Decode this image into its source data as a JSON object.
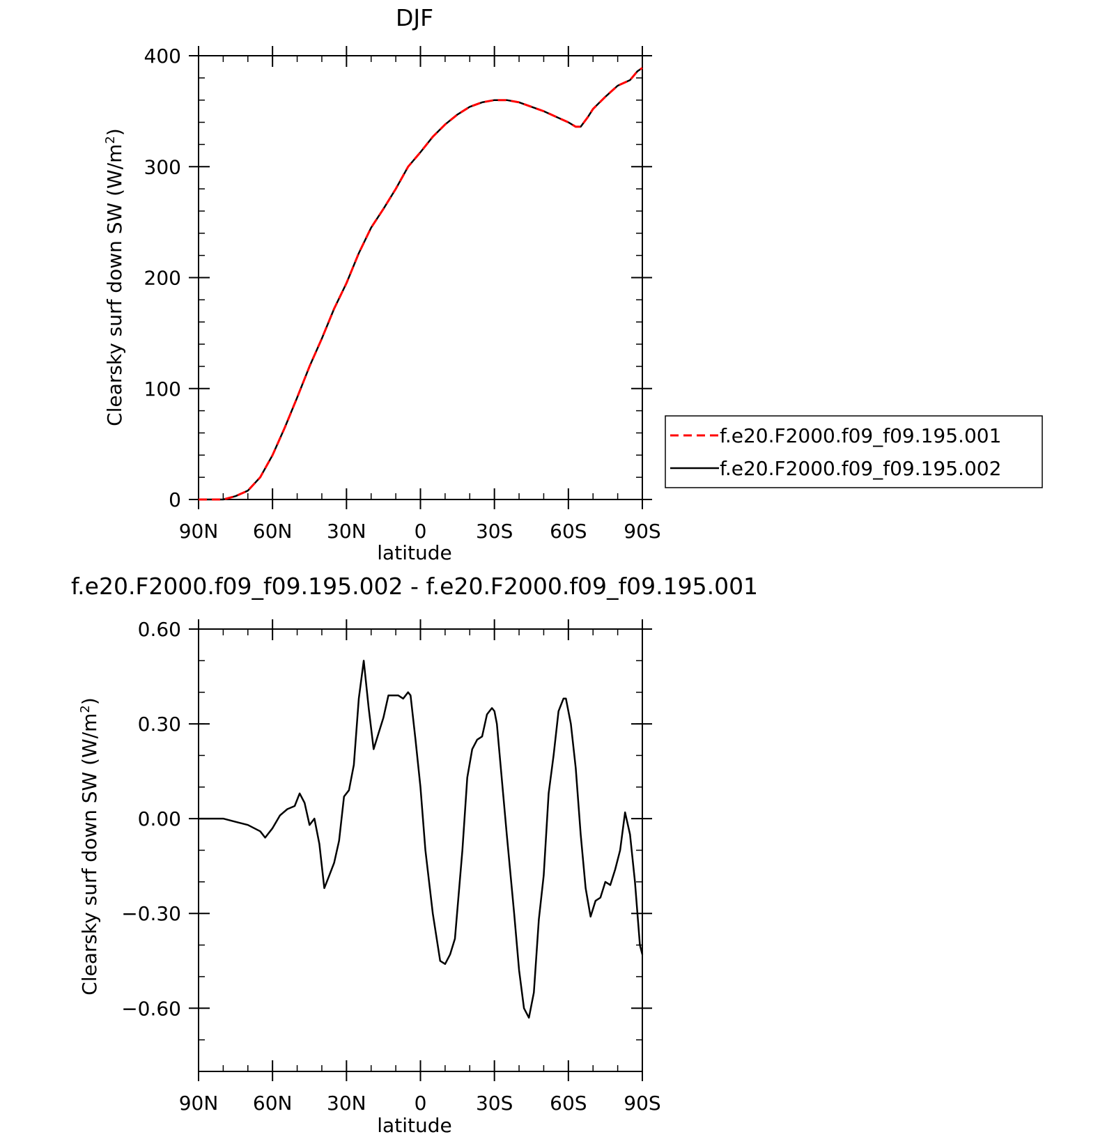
{
  "chart_data": [
    {
      "type": "line",
      "title": "DJF",
      "xlabel": "latitude",
      "ylabel": "Clearsky surf down SW (W/m",
      "ylabel_sup": "2",
      "ylabel_end": ")",
      "xlim": [
        90,
        -90
      ],
      "ylim": [
        0,
        400
      ],
      "x_ticks": [
        {
          "value": 90,
          "label": "90N"
        },
        {
          "value": 60,
          "label": "60N"
        },
        {
          "value": 30,
          "label": "30N"
        },
        {
          "value": 0,
          "label": "0"
        },
        {
          "value": -30,
          "label": "30S"
        },
        {
          "value": -60,
          "label": "60S"
        },
        {
          "value": -90,
          "label": "90S"
        }
      ],
      "y_ticks": [
        {
          "value": 0,
          "label": "0"
        },
        {
          "value": 100,
          "label": "100"
        },
        {
          "value": 200,
          "label": "200"
        },
        {
          "value": 300,
          "label": "300"
        },
        {
          "value": 400,
          "label": "400"
        }
      ],
      "legend_position": "right",
      "series": [
        {
          "name": "f.e20.F2000.f09_f09.195.001",
          "color": "#ff0000",
          "dash": "dashed",
          "points": [
            [
              90,
              0
            ],
            [
              85,
              0
            ],
            [
              80,
              0
            ],
            [
              75,
              3
            ],
            [
              70,
              8
            ],
            [
              65,
              20
            ],
            [
              60,
              40
            ],
            [
              55,
              65
            ],
            [
              50,
              92
            ],
            [
              45,
              120
            ],
            [
              40,
              145
            ],
            [
              35,
              172
            ],
            [
              30,
              195
            ],
            [
              25,
              222
            ],
            [
              20,
              245
            ],
            [
              15,
              262
            ],
            [
              10,
              280
            ],
            [
              5,
              300
            ],
            [
              0,
              313
            ],
            [
              -5,
              327
            ],
            [
              -10,
              338
            ],
            [
              -15,
              347
            ],
            [
              -20,
              354
            ],
            [
              -25,
              358
            ],
            [
              -30,
              360
            ],
            [
              -35,
              360
            ],
            [
              -40,
              358
            ],
            [
              -45,
              354
            ],
            [
              -50,
              350
            ],
            [
              -55,
              345
            ],
            [
              -60,
              340
            ],
            [
              -63,
              336
            ],
            [
              -65,
              336
            ],
            [
              -68,
              345
            ],
            [
              -70,
              352
            ],
            [
              -75,
              363
            ],
            [
              -80,
              373
            ],
            [
              -85,
              378
            ],
            [
              -88,
              386
            ],
            [
              -90,
              389
            ]
          ]
        },
        {
          "name": "f.e20.F2000.f09_f09.195.002",
          "color": "#000000",
          "dash": "solid",
          "points": [
            [
              90,
              0
            ],
            [
              85,
              0
            ],
            [
              80,
              0
            ],
            [
              75,
              3
            ],
            [
              70,
              8
            ],
            [
              65,
              20
            ],
            [
              60,
              40
            ],
            [
              55,
              65
            ],
            [
              50,
              92
            ],
            [
              45,
              120
            ],
            [
              40,
              145
            ],
            [
              35,
              172
            ],
            [
              30,
              195
            ],
            [
              25,
              222
            ],
            [
              20,
              245
            ],
            [
              15,
              262
            ],
            [
              10,
              280
            ],
            [
              5,
              300
            ],
            [
              0,
              313
            ],
            [
              -5,
              327
            ],
            [
              -10,
              338
            ],
            [
              -15,
              347
            ],
            [
              -20,
              354
            ],
            [
              -25,
              358
            ],
            [
              -30,
              360
            ],
            [
              -35,
              360
            ],
            [
              -40,
              358
            ],
            [
              -45,
              354
            ],
            [
              -50,
              350
            ],
            [
              -55,
              345
            ],
            [
              -60,
              340
            ],
            [
              -63,
              336
            ],
            [
              -65,
              336
            ],
            [
              -68,
              345
            ],
            [
              -70,
              352
            ],
            [
              -75,
              363
            ],
            [
              -80,
              373
            ],
            [
              -85,
              378
            ],
            [
              -88,
              386
            ],
            [
              -90,
              389
            ]
          ]
        }
      ]
    },
    {
      "type": "line",
      "title": "f.e20.F2000.f09_f09.195.002 - f.e20.F2000.f09_f09.195.001",
      "xlabel": "latitude",
      "ylabel": "Clearsky surf down SW (W/m",
      "ylabel_sup": "2",
      "ylabel_end": ")",
      "xlim": [
        90,
        -90
      ],
      "ylim": [
        -0.8,
        0.6
      ],
      "x_ticks": [
        {
          "value": 90,
          "label": "90N"
        },
        {
          "value": 60,
          "label": "60N"
        },
        {
          "value": 30,
          "label": "30N"
        },
        {
          "value": 0,
          "label": "0"
        },
        {
          "value": -30,
          "label": "30S"
        },
        {
          "value": -60,
          "label": "60S"
        },
        {
          "value": -90,
          "label": "90S"
        }
      ],
      "y_ticks": [
        {
          "value": -0.6,
          "label": "−0.60"
        },
        {
          "value": -0.3,
          "label": "−0.30"
        },
        {
          "value": 0,
          "label": "0.00"
        },
        {
          "value": 0.3,
          "label": "0.30"
        },
        {
          "value": 0.6,
          "label": "0.60"
        }
      ],
      "series": [
        {
          "color": "#000000",
          "dash": "solid",
          "points": [
            [
              90,
              0
            ],
            [
              80,
              0
            ],
            [
              75,
              -0.01
            ],
            [
              70,
              -0.02
            ],
            [
              65,
              -0.04
            ],
            [
              63,
              -0.06
            ],
            [
              60,
              -0.03
            ],
            [
              57,
              0.01
            ],
            [
              54,
              0.03
            ],
            [
              51,
              0.04
            ],
            [
              49,
              0.08
            ],
            [
              47,
              0.05
            ],
            [
              45,
              -0.02
            ],
            [
              43,
              0.0
            ],
            [
              41,
              -0.08
            ],
            [
              39,
              -0.22
            ],
            [
              37,
              -0.18
            ],
            [
              35,
              -0.14
            ],
            [
              33,
              -0.07
            ],
            [
              31,
              0.07
            ],
            [
              29,
              0.09
            ],
            [
              27,
              0.17
            ],
            [
              25,
              0.38
            ],
            [
              23,
              0.5
            ],
            [
              21,
              0.35
            ],
            [
              19,
              0.22
            ],
            [
              17,
              0.27
            ],
            [
              15,
              0.32
            ],
            [
              13,
              0.39
            ],
            [
              11,
              0.39
            ],
            [
              9,
              0.39
            ],
            [
              7,
              0.38
            ],
            [
              5,
              0.4
            ],
            [
              4,
              0.39
            ],
            [
              2,
              0.25
            ],
            [
              0,
              0.1
            ],
            [
              -2,
              -0.1
            ],
            [
              -5,
              -0.3
            ],
            [
              -8,
              -0.45
            ],
            [
              -10,
              -0.46
            ],
            [
              -12,
              -0.43
            ],
            [
              -14,
              -0.38
            ],
            [
              -17,
              -0.1
            ],
            [
              -19,
              0.13
            ],
            [
              -21,
              0.22
            ],
            [
              -23,
              0.25
            ],
            [
              -25,
              0.26
            ],
            [
              -27,
              0.33
            ],
            [
              -29,
              0.35
            ],
            [
              -30,
              0.34
            ],
            [
              -31,
              0.3
            ],
            [
              -35,
              -0.05
            ],
            [
              -38,
              -0.3
            ],
            [
              -40,
              -0.48
            ],
            [
              -42,
              -0.6
            ],
            [
              -44,
              -0.63
            ],
            [
              -46,
              -0.55
            ],
            [
              -48,
              -0.32
            ],
            [
              -50,
              -0.18
            ],
            [
              -52,
              0.08
            ],
            [
              -54,
              0.2
            ],
            [
              -56,
              0.34
            ],
            [
              -58,
              0.38
            ],
            [
              -59,
              0.38
            ],
            [
              -61,
              0.3
            ],
            [
              -63,
              0.16
            ],
            [
              -65,
              -0.05
            ],
            [
              -67,
              -0.22
            ],
            [
              -69,
              -0.31
            ],
            [
              -71,
              -0.26
            ],
            [
              -73,
              -0.25
            ],
            [
              -75,
              -0.2
            ],
            [
              -77,
              -0.21
            ],
            [
              -79,
              -0.16
            ],
            [
              -81,
              -0.1
            ],
            [
              -83,
              0.02
            ],
            [
              -85,
              -0.05
            ],
            [
              -87,
              -0.2
            ],
            [
              -89,
              -0.4
            ],
            [
              -90,
              -0.43
            ]
          ]
        }
      ]
    }
  ]
}
